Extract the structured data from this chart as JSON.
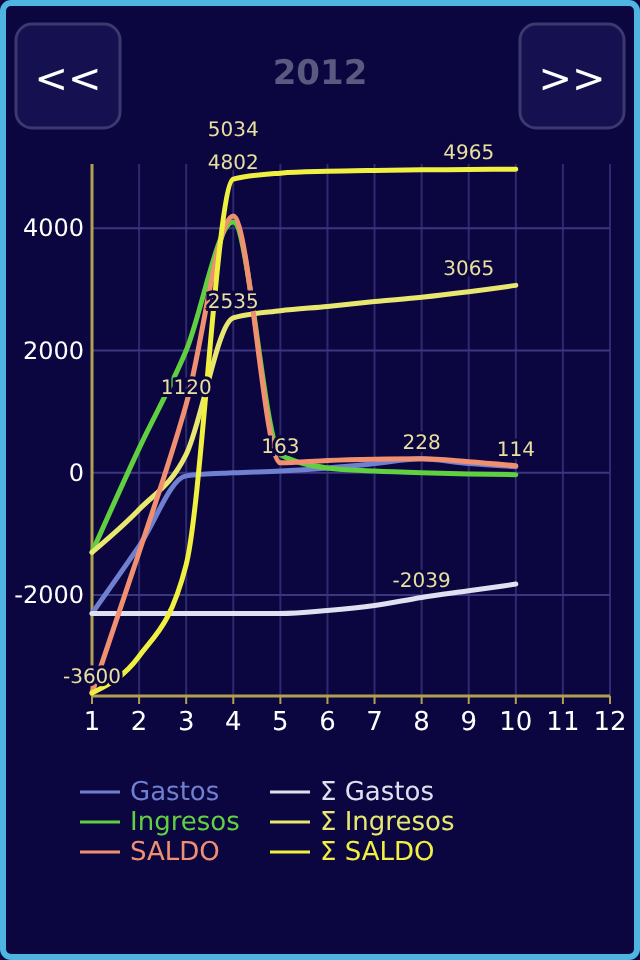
{
  "chart_data": {
    "type": "line",
    "title": "2012",
    "x": [
      1,
      2,
      3,
      4,
      5,
      6,
      7,
      8,
      9,
      10
    ],
    "xlim": [
      1,
      12
    ],
    "xticks": [
      1,
      2,
      3,
      4,
      5,
      6,
      7,
      8,
      9,
      10,
      11,
      12
    ],
    "ylim": [
      -3650,
      5050
    ],
    "yticks": [
      -2000,
      0,
      2000,
      4000
    ],
    "grid": true,
    "legend": "bottom",
    "line_style": "solid",
    "marker": "none",
    "series": [
      {
        "name": "Gastos",
        "color": "#7080d0",
        "values": [
          -2300,
          -1200,
          -50,
          0,
          30,
          80,
          150,
          228,
          150,
          100
        ]
      },
      {
        "name": "Σ Gastos",
        "color": "#e0e0f0",
        "values": [
          -2300,
          -2300,
          -2300,
          -2300,
          -2300,
          -2250,
          -2170,
          -2039,
          -1930,
          -1820
        ]
      },
      {
        "name": "Ingresos",
        "color": "#60d040",
        "values": [
          -1300,
          400,
          2000,
          4100,
          300,
          80,
          30,
          0,
          -20,
          -30
        ]
      },
      {
        "name": "Σ Ingresos",
        "color": "#e8e870",
        "values": [
          -1300,
          -600,
          300,
          2535,
          2650,
          2720,
          2800,
          2870,
          2960,
          3065
        ]
      },
      {
        "name": "SALDO",
        "color": "#f09070",
        "values": [
          -3600,
          -1300,
          1120,
          4200,
          163,
          200,
          220,
          228,
          180,
          114
        ]
      },
      {
        "name": "Σ SALDO",
        "color": "#f0f040",
        "values": [
          -3600,
          -3000,
          -1500,
          4802,
          4900,
          4930,
          4945,
          4955,
          4960,
          4965
        ]
      }
    ],
    "annotations": [
      "<<",
      ">>",
      "5034",
      {
        "text": "4802",
        "x": 4,
        "y": 4802
      },
      {
        "text": "4965",
        "x": 9,
        "y": 4965
      },
      {
        "text": "3065",
        "x": 9,
        "y": 3065
      },
      {
        "text": "2535",
        "x": 4,
        "y": 2535
      },
      {
        "text": "1120",
        "x": 3,
        "y": 1120
      },
      {
        "text": "163",
        "x": 5,
        "y": 163
      },
      {
        "text": "228",
        "x": 8,
        "y": 228
      },
      {
        "text": "114",
        "x": 10,
        "y": 114
      },
      {
        "text": "-2039",
        "x": 8,
        "y": -2039
      },
      {
        "text": "-3600",
        "x": 1,
        "y": -3600
      }
    ]
  }
}
